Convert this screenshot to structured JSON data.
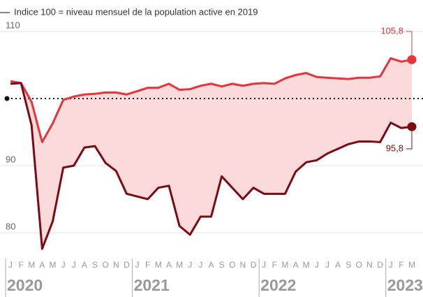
{
  "chart_data": {
    "type": "line",
    "subtitle": "Indice 100 = niveau mensuel de la population active en 2019",
    "categories": [
      "J",
      "F",
      "M",
      "A",
      "M",
      "J",
      "J",
      "A",
      "S",
      "O",
      "N",
      "D",
      "J",
      "F",
      "M",
      "A",
      "M",
      "J",
      "J",
      "A",
      "S",
      "O",
      "N",
      "D",
      "J",
      "F",
      "M",
      "A",
      "M",
      "J",
      "J",
      "A",
      "S",
      "O",
      "N",
      "D",
      "J",
      "F",
      "M"
    ],
    "years": [
      "2020",
      "2021",
      "2022",
      "2023"
    ],
    "series": [
      {
        "color": "#e8333a",
        "values": [
          102.6,
          102.3,
          99.5,
          93.5,
          96.3,
          99.8,
          100.3,
          100.6,
          100.7,
          100.9,
          100.9,
          100.6,
          101.1,
          101.6,
          101.6,
          102.2,
          101.3,
          101.4,
          101.9,
          102.2,
          101.8,
          102.2,
          101.9,
          102.2,
          102.3,
          102.2,
          103.0,
          103.5,
          103.8,
          103.2,
          103.1,
          103.0,
          102.9,
          103.1,
          103.1,
          103.3,
          106.0,
          105.5,
          105.8
        ],
        "end_label": "105,8"
      },
      {
        "color": "#7d0a12",
        "values": [
          102.2,
          102.3,
          96.0,
          77.6,
          81.7,
          89.7,
          90.0,
          92.7,
          92.9,
          90.4,
          89.2,
          85.8,
          85.4,
          85.0,
          86.7,
          87.0,
          81.0,
          79.7,
          82.4,
          82.4,
          88.4,
          86.7,
          85.0,
          86.7,
          85.8,
          85.8,
          85.8,
          89.1,
          90.5,
          90.8,
          91.8,
          92.5,
          93.2,
          93.6,
          93.6,
          93.5,
          96.4,
          95.6,
          95.8
        ],
        "end_label": "95,8"
      }
    ],
    "area_color": "#fadadb",
    "ylim": [
      76,
      111.5
    ],
    "yticks": [
      80,
      90,
      110
    ],
    "reference_line": 100,
    "grid": true
  }
}
